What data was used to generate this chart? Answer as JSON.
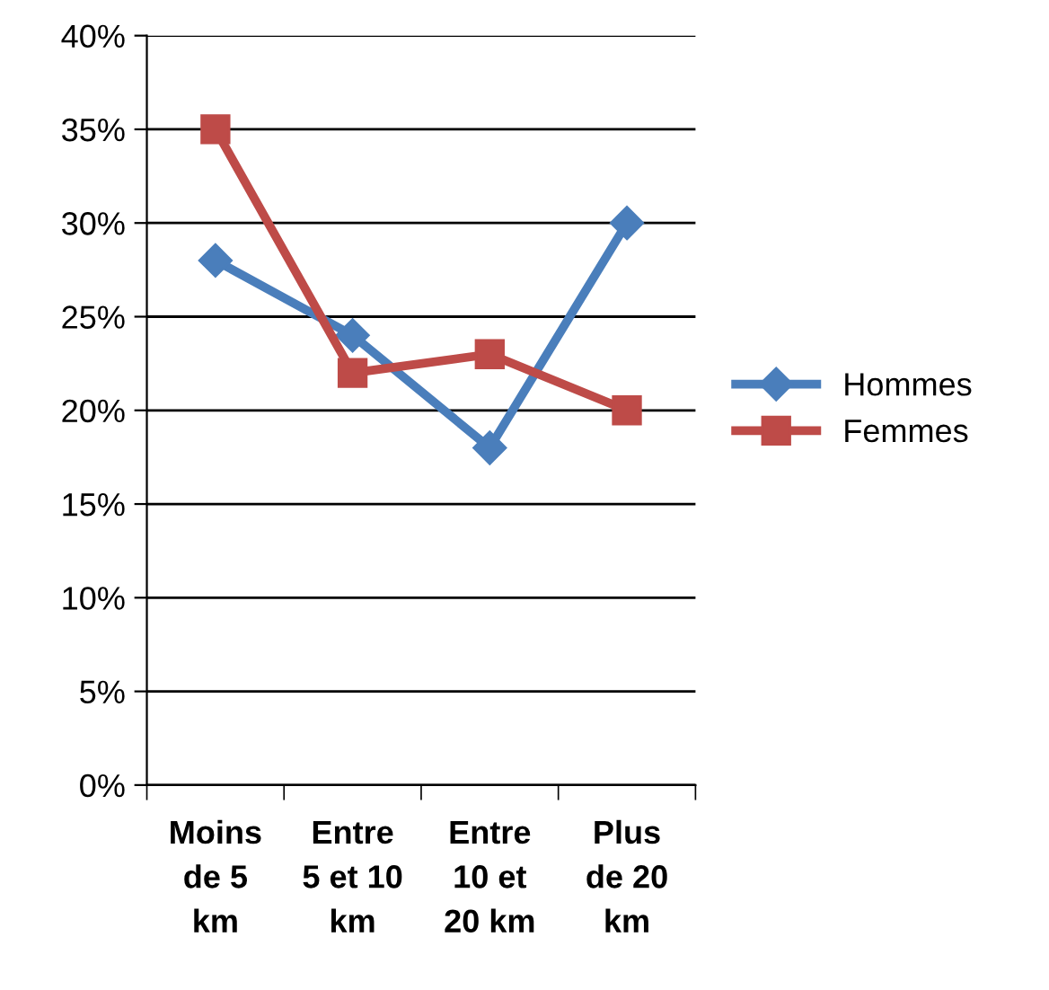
{
  "chart_data": {
    "type": "line",
    "categories": [
      "Moins\nde 5\nkm",
      "Entre\n5 et 10\nkm",
      "Entre\n10 et\n20 km",
      "Plus\nde 20\nkm"
    ],
    "series": [
      {
        "name": "Hommes",
        "color": "#4a7ebb",
        "marker": "diamond",
        "values": [
          28,
          24,
          18,
          30
        ]
      },
      {
        "name": "Femmes",
        "color": "#be4b48",
        "marker": "square",
        "values": [
          35,
          22,
          23,
          20
        ]
      }
    ],
    "ylim": [
      0,
      40
    ],
    "yticks": [
      {
        "value": 0,
        "label": "0%"
      },
      {
        "value": 5,
        "label": "5%"
      },
      {
        "value": 10,
        "label": "10%"
      },
      {
        "value": 15,
        "label": "15%"
      },
      {
        "value": 20,
        "label": "20%"
      },
      {
        "value": 25,
        "label": "25%"
      },
      {
        "value": 30,
        "label": "30%"
      },
      {
        "value": 35,
        "label": "35%"
      },
      {
        "value": 40,
        "label": "40%"
      }
    ],
    "grid": "y",
    "legend": "right",
    "line_style": "solid"
  }
}
